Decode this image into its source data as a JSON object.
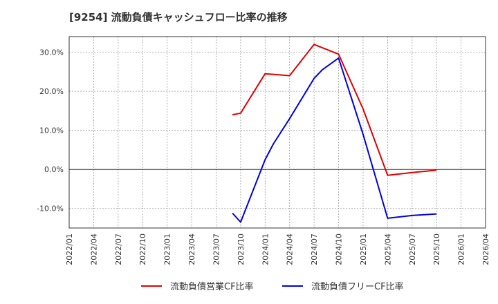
{
  "chart_data": {
    "type": "line",
    "title": "[9254]  流動負債キャッシュフロー比率の推移",
    "xlabel": "",
    "ylabel": "",
    "ylim": [
      -15,
      34
    ],
    "y_ticks": [
      30,
      20,
      10,
      0,
      -10
    ],
    "y_tick_labels": [
      "30.0%",
      "20.0%",
      "10.0%",
      "0.0%",
      "-10.0%"
    ],
    "x_ticks": [
      "2022/01",
      "2022/04",
      "2022/07",
      "2022/10",
      "2023/01",
      "2023/04",
      "2023/07",
      "2023/10",
      "2024/01",
      "2024/04",
      "2024/07",
      "2024/10",
      "2025/01",
      "2025/04",
      "2025/07",
      "2025/10",
      "2026/01",
      "2026/04"
    ],
    "grid": true,
    "legend_position": "bottom",
    "series": [
      {
        "name": "流動負債営業CF比率",
        "color": "#e00000",
        "points": [
          {
            "x": "2023/09",
            "y": 14.0
          },
          {
            "x": "2023/10",
            "y": 14.4
          },
          {
            "x": "2024/01",
            "y": 24.5
          },
          {
            "x": "2024/04",
            "y": 24.0
          },
          {
            "x": "2024/07",
            "y": 32.0
          },
          {
            "x": "2024/10",
            "y": 29.5
          },
          {
            "x": "2025/01",
            "y": 15.5
          },
          {
            "x": "2025/04",
            "y": -1.5
          },
          {
            "x": "2025/07",
            "y": -0.8
          },
          {
            "x": "2025/10",
            "y": -0.2
          }
        ]
      },
      {
        "name": "流動負債フリーCF比率",
        "color": "#0000e0",
        "points": [
          {
            "x": "2023/09",
            "y": -11.2
          },
          {
            "x": "2023/10",
            "y": -13.5
          },
          {
            "x": "2024/01",
            "y": 2.5
          },
          {
            "x": "2024/02",
            "y": 6.5
          },
          {
            "x": "2024/04",
            "y": 13.0
          },
          {
            "x": "2024/07",
            "y": 23.3
          },
          {
            "x": "2024/08",
            "y": 25.5
          },
          {
            "x": "2024/10",
            "y": 28.5
          },
          {
            "x": "2025/01",
            "y": 9.0
          },
          {
            "x": "2025/04",
            "y": -12.5
          },
          {
            "x": "2025/07",
            "y": -11.8
          },
          {
            "x": "2025/10",
            "y": -11.4
          }
        ]
      }
    ]
  }
}
